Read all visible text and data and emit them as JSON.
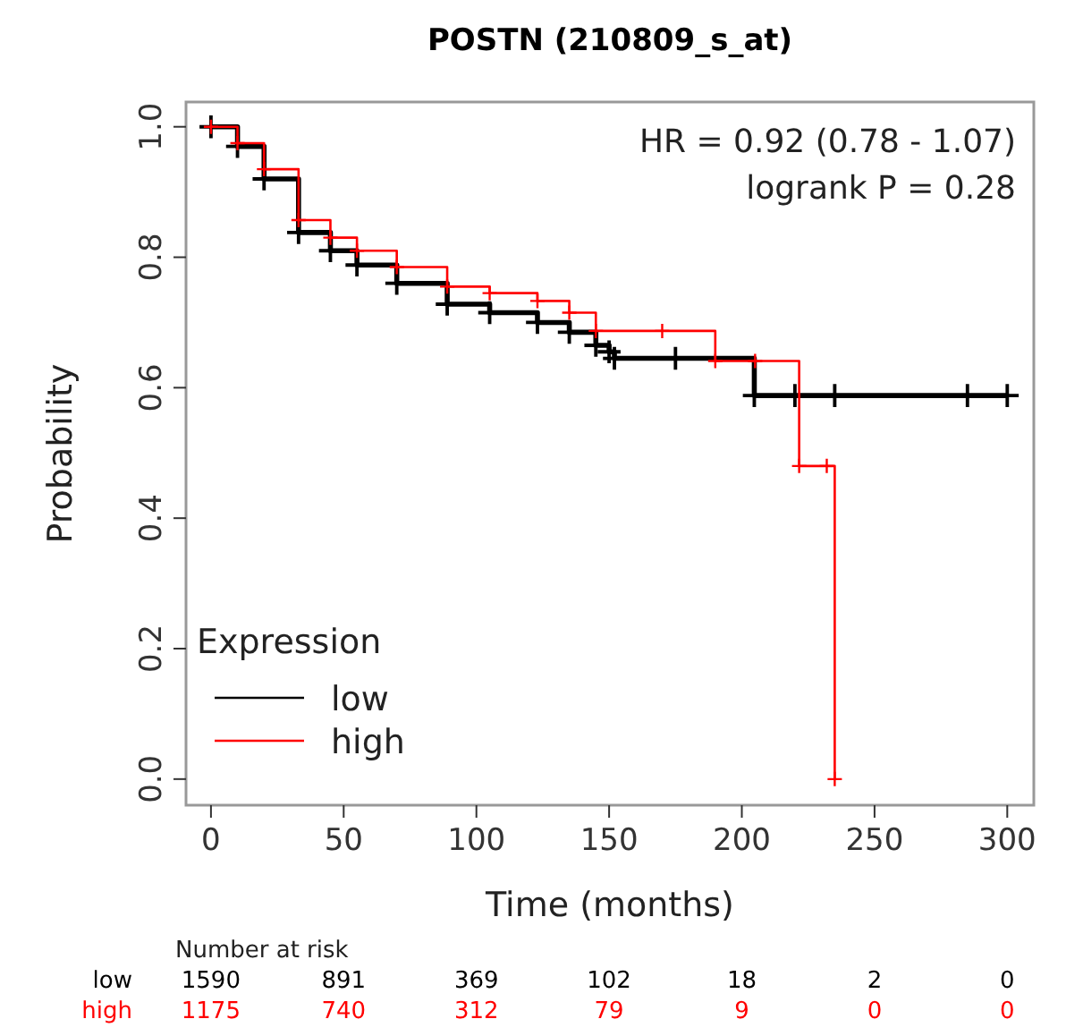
{
  "chart_data": {
    "type": "step",
    "title": "POSTN (210809_s_at)",
    "xlabel": "Time (months)",
    "ylabel": "Probability",
    "legend_title": "Expression",
    "legend": "bottom left",
    "marker": "cross",
    "grid": false,
    "xlim": [
      -9.4,
      310
    ],
    "xticks": [
      0,
      50,
      100,
      150,
      200,
      250,
      300
    ],
    "ylim": [
      -0.04,
      1.038
    ],
    "yticks": [
      {
        "value": 0,
        "label": "0.0"
      },
      {
        "value": 0.2,
        "label": "0.2"
      },
      {
        "value": 0.4,
        "label": "0.4"
      },
      {
        "value": 0.6,
        "label": "0.6"
      },
      {
        "value": 0.8,
        "label": "0.8"
      },
      {
        "value": 1,
        "label": "1.0"
      }
    ],
    "series": [
      {
        "name": "low",
        "color": "#000000",
        "x": [
          0,
          10,
          20,
          33,
          45,
          55,
          70,
          89,
          105,
          123,
          135,
          145,
          150,
          152,
          175,
          204.7,
          220,
          235,
          285,
          300
        ],
        "values": [
          1.0,
          0.97,
          0.92,
          0.838,
          0.81,
          0.788,
          0.76,
          0.728,
          0.715,
          0.7,
          0.685,
          0.665,
          0.655,
          0.645,
          0.645,
          0.588,
          0.588,
          0.588,
          0.588,
          0.588
        ]
      },
      {
        "name": "high",
        "color": "#ff0000",
        "x": [
          0,
          10,
          20,
          33,
          45,
          55,
          70,
          89,
          105,
          123,
          135,
          145,
          170,
          190,
          205,
          221.6,
          232,
          235
        ],
        "values": [
          1.0,
          0.975,
          0.935,
          0.857,
          0.83,
          0.81,
          0.785,
          0.755,
          0.745,
          0.733,
          0.715,
          0.687,
          0.687,
          0.641,
          0.641,
          0.48,
          0.48,
          0.0
        ]
      }
    ],
    "annotations": [
      "HR = 0.92 (0.78 - 1.07)",
      "logrank P = 0.28",
      "Number at risk",
      "1590",
      "891",
      "369",
      "102",
      "18",
      "2",
      "0",
      "1175",
      "740",
      "312",
      "79",
      "9",
      "0",
      "0"
    ]
  }
}
